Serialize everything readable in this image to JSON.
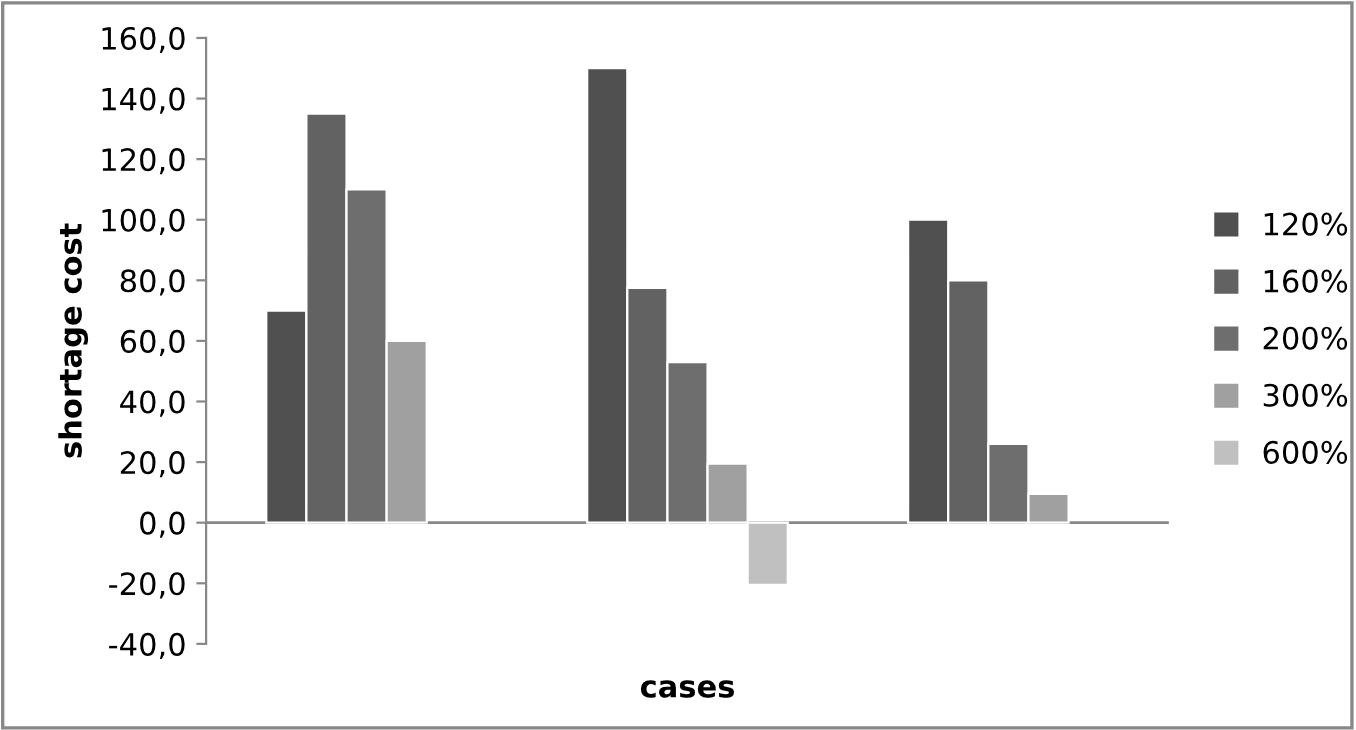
{
  "chart_data": {
    "type": "bar",
    "xlabel": "cases",
    "ylabel": "shortage cost",
    "categories": [
      null,
      null,
      null
    ],
    "series": [
      {
        "name": "120%",
        "color": "#505050",
        "values": [
          70,
          150,
          100
        ]
      },
      {
        "name": "160%",
        "color": "#626262",
        "values": [
          135,
          77.5,
          80
        ]
      },
      {
        "name": "200%",
        "color": "#6e6e6e",
        "values": [
          110,
          53,
          26
        ]
      },
      {
        "name": "300%",
        "color": "#a0a0a0",
        "values": [
          60,
          19.5,
          9.5
        ]
      },
      {
        "name": "600%",
        "color": "#c0c0c0",
        "values": [
          null,
          -20.5,
          null
        ]
      }
    ],
    "ylim": [
      -40,
      160
    ],
    "yticks": [
      {
        "value": -40,
        "label": "-40,0"
      },
      {
        "value": -20,
        "label": "-20,0"
      },
      {
        "value": 0,
        "label": "0,0"
      },
      {
        "value": 20,
        "label": "20,0"
      },
      {
        "value": 40,
        "label": "40,0"
      },
      {
        "value": 60,
        "label": "60,0"
      },
      {
        "value": 80,
        "label": "80,0"
      },
      {
        "value": 100,
        "label": "100,0"
      },
      {
        "value": 120,
        "label": "120,0"
      },
      {
        "value": 140,
        "label": "140,0"
      },
      {
        "value": 160,
        "label": "160,0"
      }
    ],
    "ref_lines": [
      {
        "axis": "y",
        "value": 0,
        "color": "#888888"
      }
    ],
    "grid": false,
    "legend": "right"
  }
}
